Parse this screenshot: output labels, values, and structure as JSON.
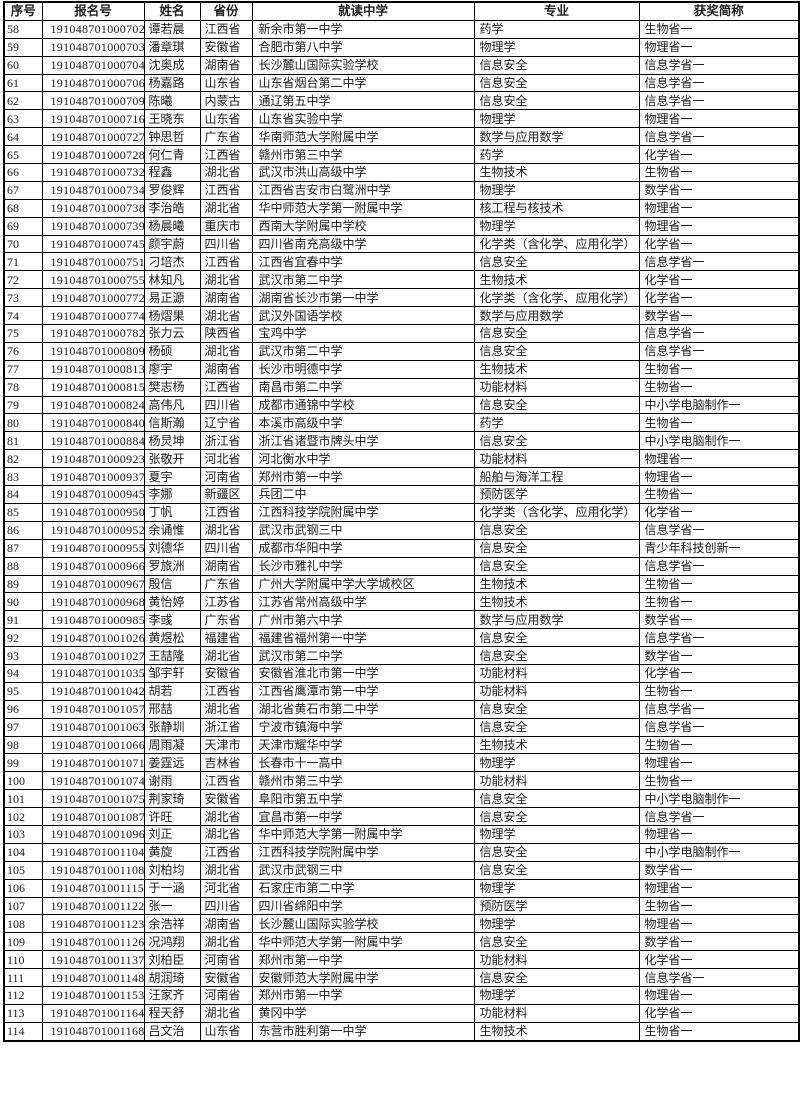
{
  "colors": {
    "border": "#000000",
    "text": "#1d1d1d",
    "background": "#ffffff"
  },
  "table": {
    "headers": [
      "序号",
      "报名号",
      "姓名",
      "省份",
      "就读中学",
      "专业",
      "获奖简称"
    ],
    "rows": [
      [
        "58",
        "191048701000702",
        "谭若晨",
        "江西省",
        "新余市第一中学",
        "药学",
        "生物省一"
      ],
      [
        "59",
        "191048701000703",
        "潘章琪",
        "安徽省",
        "合肥市第八中学",
        "物理学",
        "物理省一"
      ],
      [
        "60",
        "191048701000704",
        "沈奥成",
        "湖南省",
        "长沙麓山国际实验学校",
        "信息安全",
        "信息学省一"
      ],
      [
        "61",
        "191048701000706",
        "杨嘉路",
        "山东省",
        "山东省烟台第二中学",
        "信息安全",
        "信息学省一"
      ],
      [
        "62",
        "191048701000709",
        "陈曦",
        "内蒙古",
        "通辽第五中学",
        "信息安全",
        "信息学省一"
      ],
      [
        "63",
        "191048701000716",
        "王晓东",
        "山东省",
        "山东省实验中学",
        "物理学",
        "物理省一"
      ],
      [
        "64",
        "191048701000727",
        "钟思哲",
        "广东省",
        "华南师范大学附属中学",
        "数学与应用数学",
        "信息学省一"
      ],
      [
        "65",
        "191048701000728",
        "何仁青",
        "江西省",
        "赣州市第三中学",
        "药学",
        "化学省一"
      ],
      [
        "66",
        "191048701000732",
        "程鑫",
        "湖北省",
        "武汉市洪山高级中学",
        "生物技术",
        "生物省一"
      ],
      [
        "67",
        "191048701000734",
        "罗俊辉",
        "江西省",
        "江西省吉安市白鹭洲中学",
        "物理学",
        "数学省一"
      ],
      [
        "68",
        "191048701000738",
        "李治皓",
        "湖北省",
        "华中师范大学第一附属中学",
        "核工程与核技术",
        "物理省一"
      ],
      [
        "69",
        "191048701000739",
        "杨晨曦",
        "重庆市",
        "西南大学附属中学校",
        "物理学",
        "物理省一"
      ],
      [
        "70",
        "191048701000745",
        "颜宇蔚",
        "四川省",
        "四川省南充高级中学",
        "化学类（含化学、应用化学）",
        "化学省一"
      ],
      [
        "71",
        "191048701000751",
        "刁培杰",
        "江西省",
        "江西省宜春中学",
        "信息安全",
        "信息学省一"
      ],
      [
        "72",
        "191048701000755",
        "林知凡",
        "湖北省",
        "武汉市第二中学",
        "生物技术",
        "化学省一"
      ],
      [
        "73",
        "191048701000772",
        "易正源",
        "湖南省",
        "湖南省长沙市第一中学",
        "化学类（含化学、应用化学）",
        "化学省一"
      ],
      [
        "74",
        "191048701000774",
        "杨熠果",
        "湖北省",
        "武汉外国语学校",
        "数学与应用数学",
        "数学省一"
      ],
      [
        "75",
        "191048701000782",
        "张力云",
        "陕西省",
        "宝鸡中学",
        "信息安全",
        "信息学省一"
      ],
      [
        "76",
        "191048701000809",
        "杨硕",
        "湖北省",
        "武汉市第二中学",
        "信息安全",
        "信息学省一"
      ],
      [
        "77",
        "191048701000813",
        "廖宇",
        "湖南省",
        "长沙市明德中学",
        "生物技术",
        "生物省一"
      ],
      [
        "78",
        "191048701000815",
        "樊志杨",
        "江西省",
        "南昌市第二中学",
        "功能材料",
        "生物省一"
      ],
      [
        "79",
        "191048701000824",
        "高伟凡",
        "四川省",
        "成都市通锦中学校",
        "信息安全",
        "中小学电脑制作一"
      ],
      [
        "80",
        "191048701000840",
        "信斯瀚",
        "辽宁省",
        "本溪市高级中学",
        "药学",
        "生物省一"
      ],
      [
        "81",
        "191048701000884",
        "杨炅坤",
        "浙江省",
        "浙江省诸暨市牌头中学",
        "信息安全",
        "中小学电脑制作一"
      ],
      [
        "82",
        "191048701000923",
        "张敬开",
        "河北省",
        "河北衡水中学",
        "功能材料",
        "物理省一"
      ],
      [
        "83",
        "191048701000937",
        "夏宇",
        "河南省",
        "郑州市第一中学",
        "船舶与海洋工程",
        "物理省一"
      ],
      [
        "84",
        "191048701000945",
        "李娜",
        "新疆区",
        "兵团二中",
        "预防医学",
        "生物省一"
      ],
      [
        "85",
        "191048701000950",
        "丁帆",
        "江西省",
        "江西科技学院附属中学",
        "化学类（含化学、应用化学）",
        "化学省一"
      ],
      [
        "86",
        "191048701000952",
        "余诵惟",
        "湖北省",
        "武汉市武钢三中",
        "信息安全",
        "信息学省一"
      ],
      [
        "87",
        "191048701000955",
        "刘德华",
        "四川省",
        "成都市华阳中学",
        "信息安全",
        "青少年科技创新一"
      ],
      [
        "88",
        "191048701000966",
        "罗旅洲",
        "湖南省",
        "长沙市雅礼中学",
        "信息安全",
        "信息学省一"
      ],
      [
        "89",
        "191048701000967",
        "殷信",
        "广东省",
        "广州大学附属中学大学城校区",
        "生物技术",
        "生物省一"
      ],
      [
        "90",
        "191048701000968",
        "黄怡婷",
        "江苏省",
        "江苏省常州高级中学",
        "生物技术",
        "生物省一"
      ],
      [
        "91",
        "191048701000985",
        "李彧",
        "广东省",
        "广州市第六中学",
        "数学与应用数学",
        "数学省一"
      ],
      [
        "92",
        "191048701001026",
        "黄煜松",
        "福建省",
        "福建省福州第一中学",
        "信息安全",
        "信息学省一"
      ],
      [
        "93",
        "191048701001027",
        "王喆隆",
        "湖北省",
        "武汉市第二中学",
        "信息安全",
        "数学省一"
      ],
      [
        "94",
        "191048701001035",
        "邹宇轩",
        "安徽省",
        "安徽省淮北市第一中学",
        "功能材料",
        "化学省一"
      ],
      [
        "95",
        "191048701001042",
        "胡若",
        "江西省",
        "江西省鹰潭市第一中学",
        "功能材料",
        "生物省一"
      ],
      [
        "96",
        "191048701001057",
        "邢喆",
        "湖北省",
        "湖北省黄石市第二中学",
        "信息安全",
        "信息学省一"
      ],
      [
        "97",
        "191048701001063",
        "张静圳",
        "浙江省",
        "宁波市镇海中学",
        "信息安全",
        "信息学省一"
      ],
      [
        "98",
        "191048701001066",
        "周雨凝",
        "天津市",
        "天津市耀华中学",
        "生物技术",
        "生物省一"
      ],
      [
        "99",
        "191048701001071",
        "姜霆远",
        "吉林省",
        "长春市十一高中",
        "物理学",
        "物理省一"
      ],
      [
        "100",
        "191048701001074",
        "谢雨",
        "江西省",
        "赣州市第三中学",
        "功能材料",
        "生物省一"
      ],
      [
        "101",
        "191048701001075",
        "荆家琦",
        "安徽省",
        "阜阳市第五中学",
        "信息安全",
        "中小学电脑制作一"
      ],
      [
        "102",
        "191048701001087",
        "许旺",
        "湖北省",
        "宜昌市第一中学",
        "信息安全",
        "信息学省一"
      ],
      [
        "103",
        "191048701001096",
        "刘正",
        "湖北省",
        "华中师范大学第一附属中学",
        "物理学",
        "物理省一"
      ],
      [
        "104",
        "191048701001104",
        "黄旋",
        "江西省",
        "江西科技学院附属中学",
        "信息安全",
        "中小学电脑制作一"
      ],
      [
        "105",
        "191048701001108",
        "刘柏均",
        "湖北省",
        "武汉市武钢三中",
        "信息安全",
        "数学省一"
      ],
      [
        "106",
        "191048701001115",
        "于一涵",
        "河北省",
        "石家庄市第二中学",
        "物理学",
        "物理省一"
      ],
      [
        "107",
        "191048701001122",
        "张一",
        "四川省",
        "四川省绵阳中学",
        "预防医学",
        "生物省一"
      ],
      [
        "108",
        "191048701001123",
        "余浩祥",
        "湖南省",
        "长沙麓山国际实验学校",
        "物理学",
        "物理省一"
      ],
      [
        "109",
        "191048701001126",
        "况鸿翔",
        "湖北省",
        "华中师范大学第一附属中学",
        "信息安全",
        "数学省一"
      ],
      [
        "110",
        "191048701001137",
        "刘柏臣",
        "河南省",
        "郑州市第一中学",
        "功能材料",
        "化学省一"
      ],
      [
        "111",
        "191048701001148",
        "胡润琦",
        "安徽省",
        "安徽师范大学附属中学",
        "信息安全",
        "信息学省一"
      ],
      [
        "112",
        "191048701001153",
        "汪家齐",
        "河南省",
        "郑州市第一中学",
        "物理学",
        "物理省一"
      ],
      [
        "113",
        "191048701001164",
        "程天舒",
        "湖北省",
        "黄冈中学",
        "功能材料",
        "化学省一"
      ],
      [
        "114",
        "191048701001168",
        "吕文治",
        "山东省",
        "东营市胜利第一中学",
        "生物技术",
        "生物省一"
      ]
    ]
  }
}
